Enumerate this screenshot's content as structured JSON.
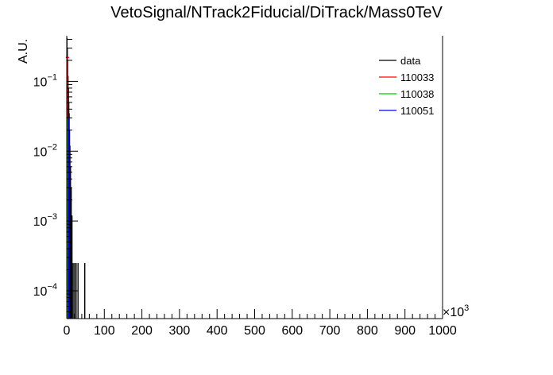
{
  "chart_data": {
    "type": "line",
    "title": "VetoSignal/NTrack2Fiducial/DiTrack/Mass0TeV",
    "xlabel": "",
    "ylabel": "A.U.",
    "x_multiplier": "×10",
    "x_multiplier_exp": "3",
    "xlim": [
      0,
      1000
    ],
    "y_scale": "log",
    "ylim": [
      4e-05,
      0.45
    ],
    "x_ticks": [
      "0",
      "100",
      "200",
      "300",
      "400",
      "500",
      "600",
      "700",
      "800",
      "900",
      "1000"
    ],
    "y_ticks": [
      {
        "value": 0.0001,
        "base": "10",
        "exp": "−4"
      },
      {
        "value": 0.001,
        "base": "10",
        "exp": "−3"
      },
      {
        "value": 0.01,
        "base": "10",
        "exp": "−2"
      },
      {
        "value": 0.1,
        "base": "10",
        "exp": "−1"
      }
    ],
    "legend_position": "top-right",
    "grid": false,
    "series": [
      {
        "name": "data",
        "color": "#000000",
        "kind": "points",
        "x": [
          0.5,
          1.5,
          2.5,
          3.5,
          4.5,
          5.5,
          6.5,
          7.5,
          8.5,
          10,
          12,
          14,
          17,
          21,
          25,
          30,
          48
        ],
        "y": [
          0.42,
          0.3,
          0.2,
          0.12,
          0.08,
          0.05,
          0.035,
          0.02,
          0.012,
          0.006,
          0.003,
          0.0012,
          0.00025,
          0.00025,
          0.00025,
          0.00025,
          0.00025
        ]
      },
      {
        "name": "110033",
        "color": "#ff0000",
        "kind": "hist",
        "x": [
          0.5
        ],
        "y": [
          0.22
        ]
      },
      {
        "name": "110038",
        "color": "#00cc00",
        "kind": "hist",
        "x": [
          0.5
        ],
        "y": [
          0.03
        ]
      },
      {
        "name": "110051",
        "color": "#0000ff",
        "kind": "hist",
        "x": [
          0.5,
          1.5
        ],
        "y": [
          0.03,
          0.03
        ]
      }
    ]
  }
}
